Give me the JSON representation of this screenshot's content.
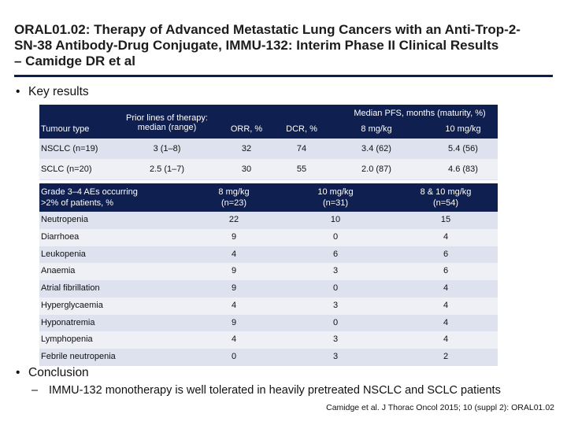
{
  "slide": {
    "title_line1": "ORAL01.02: Therapy of Advanced Metastatic Lung Cancers with an Anti-Trop-2-",
    "title_line2": "SN-38 Antibody-Drug Conjugate, IMMU-132: Interim Phase II Clinical Results",
    "title_line3": "– Camidge DR et al",
    "bullet_key": "Key results",
    "bullet_conclusion": "Conclusion",
    "conclusion_text": "IMMU-132 monotherapy is well tolerated in heavily pretreated NSCLC and SCLC patients",
    "citation": "Camidge et al. J Thorac Oncol 2015; 10 (suppl 2): ORAL01.02"
  },
  "efficacy_table": {
    "headers": {
      "tumour": "Tumour type",
      "prior_line1": "Prior lines of therapy:",
      "prior_line2": "median (range)",
      "orr": "ORR, %",
      "dcr": "DCR, %",
      "pfs_group": "Median PFS, months (maturity, %)",
      "pfs_8": "8 mg/kg",
      "pfs_10": "10 mg/kg"
    },
    "rows": [
      {
        "tumour": "NSCLC (n=19)",
        "prior": "3 (1–8)",
        "orr": "32",
        "dcr": "74",
        "pfs_8": "3.4 (62)",
        "pfs_10": "5.4 (56)"
      },
      {
        "tumour": "SCLC (n=20)",
        "prior": "2.5 (1–7)",
        "orr": "30",
        "dcr": "55",
        "pfs_8": "2.0 (87)",
        "pfs_10": "4.6 (83)"
      }
    ]
  },
  "ae_table": {
    "headers": {
      "ae_line1": "Grade 3–4 AEs occurring",
      "ae_line2": ">2% of patients, %",
      "c8_line1": "8 mg/kg",
      "c8_line2": "(n=23)",
      "c10_line1": "10 mg/kg",
      "c10_line2": "(n=31)",
      "call_line1": "8 & 10 mg/kg",
      "call_line2": "(n=54)"
    },
    "rows": [
      {
        "ae": "Neutropenia",
        "d8": "22",
        "d10": "10",
        "dall": "15"
      },
      {
        "ae": "Diarrhoea",
        "d8": "9",
        "d10": "0",
        "dall": "4"
      },
      {
        "ae": "Leukopenia",
        "d8": "4",
        "d10": "6",
        "dall": "6"
      },
      {
        "ae": "Anaemia",
        "d8": "9",
        "d10": "3",
        "dall": "6"
      },
      {
        "ae": "Atrial fibrillation",
        "d8": "9",
        "d10": "0",
        "dall": "4"
      },
      {
        "ae": "Hyperglycaemia",
        "d8": "4",
        "d10": "3",
        "dall": "4"
      },
      {
        "ae": "Hyponatremia",
        "d8": "9",
        "d10": "0",
        "dall": "4"
      },
      {
        "ae": "Lymphopenia",
        "d8": "4",
        "d10": "3",
        "dall": "4"
      },
      {
        "ae": "Febrile neutropenia",
        "d8": "0",
        "d10": "3",
        "dall": "2"
      }
    ]
  }
}
